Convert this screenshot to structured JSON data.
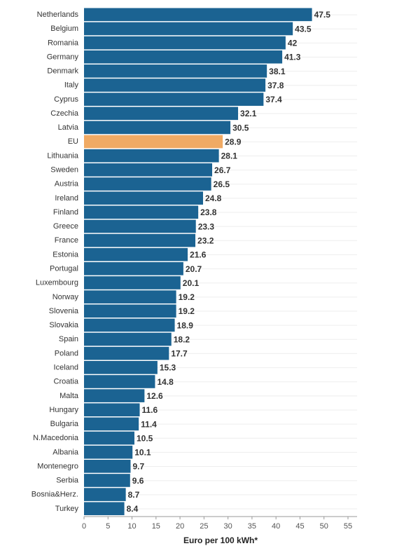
{
  "chart_data": {
    "type": "barh",
    "categories": [
      "Netherlands",
      "Belgium",
      "Romania",
      "Germany",
      "Denmark",
      "Italy",
      "Cyprus",
      "Czechia",
      "Latvia",
      "EU",
      "Lithuania",
      "Sweden",
      "Austria",
      "Ireland",
      "Finland",
      "Greece",
      "France",
      "Estonia",
      "Portugal",
      "Luxembourg",
      "Norway",
      "Slovenia",
      "Slovakia",
      "Spain",
      "Poland",
      "Iceland",
      "Croatia",
      "Malta",
      "Hungary",
      "Bulgaria",
      "N.Macedonia",
      "Albania",
      "Montenegro",
      "Serbia",
      "Bosnia&Herz.",
      "Turkey"
    ],
    "values": [
      47.5,
      43.5,
      42,
      41.3,
      38.1,
      37.8,
      37.4,
      32.1,
      30.5,
      28.9,
      28.1,
      26.7,
      26.5,
      24.8,
      23.8,
      23.3,
      23.2,
      21.6,
      20.7,
      20.1,
      19.2,
      19.2,
      18.9,
      18.2,
      17.7,
      15.3,
      14.8,
      12.6,
      11.6,
      11.4,
      10.5,
      10.1,
      9.7,
      9.6,
      8.7,
      8.4
    ],
    "color": "#1b6392",
    "highlight": "EU",
    "highlight_color": "#f0aa64",
    "xlabel": "Euro per 100 kWh*",
    "xlim": [
      0,
      55
    ],
    "xticks": [
      0,
      5,
      10,
      15,
      20,
      25,
      30,
      35,
      40,
      45,
      50,
      55
    ]
  }
}
